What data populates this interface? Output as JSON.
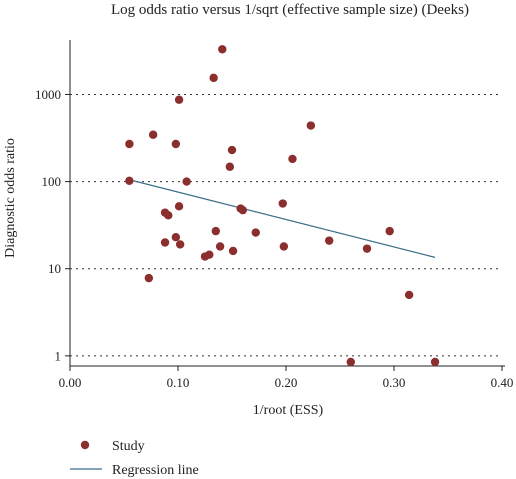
{
  "chart_data": {
    "type": "scatter",
    "title": "Log odds ratio versus 1/sqrt (effective sample size) (Deeks)",
    "xlabel": "1/root (ESS)",
    "ylabel": "Diagnostic odds ratio",
    "xlim": [
      0.0,
      0.4
    ],
    "ylim": [
      0.85,
      4000
    ],
    "y_scale": "log",
    "x_ticks": [
      "0.00",
      "0.10",
      "0.20",
      "0.30",
      "0.40"
    ],
    "x_tick_values": [
      0.0,
      0.1,
      0.2,
      0.3,
      0.4
    ],
    "y_ticks": [
      "1",
      "10",
      "100",
      "1000"
    ],
    "y_tick_values": [
      1,
      10,
      100,
      1000
    ],
    "grid": "horizontal-dotted",
    "legend_position": "bottom-left",
    "series": [
      {
        "name": "Study",
        "kind": "points",
        "color": "#8b2e2e",
        "points": [
          [
            0.141,
            3300
          ],
          [
            0.133,
            1550
          ],
          [
            0.101,
            870
          ],
          [
            0.223,
            440
          ],
          [
            0.077,
            345
          ],
          [
            0.055,
            270
          ],
          [
            0.098,
            270
          ],
          [
            0.15,
            230
          ],
          [
            0.206,
            182
          ],
          [
            0.148,
            148
          ],
          [
            0.055,
            102
          ],
          [
            0.108,
            100
          ],
          [
            0.101,
            52
          ],
          [
            0.158,
            49
          ],
          [
            0.16,
            47
          ],
          [
            0.088,
            44
          ],
          [
            0.091,
            41
          ],
          [
            0.197,
            56
          ],
          [
            0.296,
            27
          ],
          [
            0.135,
            27
          ],
          [
            0.172,
            26
          ],
          [
            0.098,
            23
          ],
          [
            0.24,
            21
          ],
          [
            0.088,
            20
          ],
          [
            0.102,
            19
          ],
          [
            0.139,
            18
          ],
          [
            0.198,
            18
          ],
          [
            0.275,
            17
          ],
          [
            0.151,
            16
          ],
          [
            0.129,
            14.5
          ],
          [
            0.125,
            13.8
          ],
          [
            0.073,
            7.8
          ],
          [
            0.314,
            5.0
          ],
          [
            0.26,
            0.85
          ],
          [
            0.338,
            0.85
          ]
        ]
      },
      {
        "name": "Regression line",
        "kind": "line",
        "color": "#3c6e8c",
        "points": [
          [
            0.055,
            105
          ],
          [
            0.338,
            13.5
          ]
        ]
      }
    ]
  }
}
